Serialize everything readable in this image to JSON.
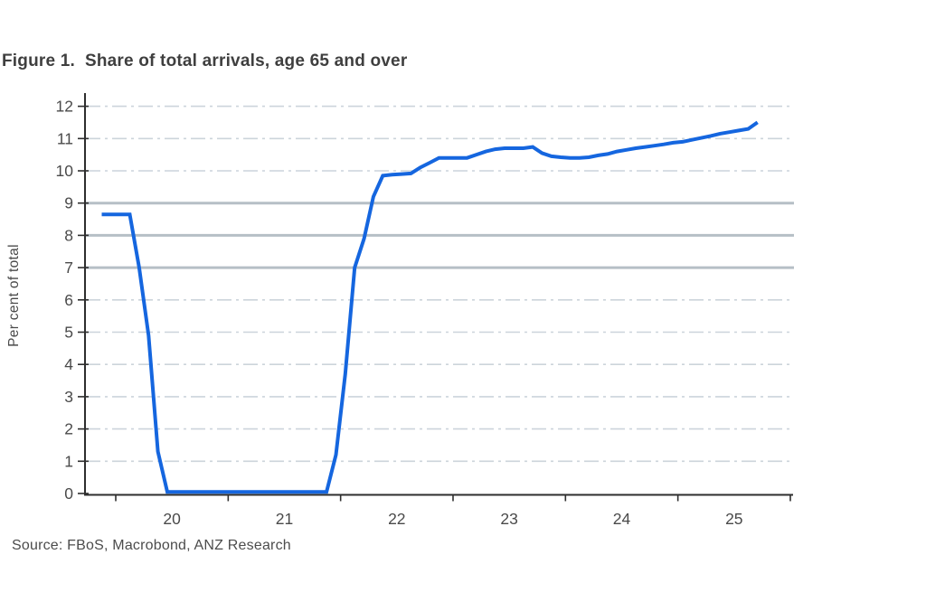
{
  "figure": {
    "title": "Figure 1.  Share of total arrivals, age 65 and over",
    "source": "Source: FBoS, Macrobond, ANZ Research"
  },
  "style": {
    "background": "#ffffff",
    "line_color": "#1566df",
    "grid_dashed_color": "#ccd4db",
    "grid_solid_color": "#b6bfc6",
    "axis_color": "#2e2e2e",
    "tick_label_color": "#4a4a4a",
    "title_color": "#3f3f3f",
    "source_color": "#4c4c4c"
  },
  "chart_data": {
    "type": "line",
    "title": "Figure 1. Share of total arrivals, age 65 and over",
    "xlabel": "",
    "ylabel": "Per cent of total",
    "ylim": [
      0,
      12
    ],
    "ytick_interval": 1,
    "ytick_labels": [
      "0",
      "1",
      "2",
      "3",
      "4",
      "5",
      "6",
      "7",
      "8",
      "9",
      "10",
      "11",
      "12"
    ],
    "xtick_labels": [
      "20",
      "21",
      "22",
      "23",
      "24",
      "25"
    ],
    "x_year_boundaries": [
      2020,
      2021,
      2022,
      2023,
      2024,
      2025,
      2026
    ],
    "grid": "horizontal dash-dot light gray; solid heavier gray at 7, 8 and 9",
    "legend_position": "none",
    "solid_grid_levels": [
      7,
      8,
      9
    ],
    "series": [
      {
        "name": "Share of total arrivals, age 65 and over",
        "color": "#1566df",
        "frequency": "monthly",
        "x": [
          "2019-11",
          "2019-12",
          "2020-01",
          "2020-02",
          "2020-03",
          "2020-04",
          "2020-05",
          "2020-06",
          "2020-07",
          "2020-08",
          "2020-09",
          "2020-10",
          "2020-11",
          "2020-12",
          "2021-01",
          "2021-02",
          "2021-03",
          "2021-04",
          "2021-05",
          "2021-06",
          "2021-07",
          "2021-08",
          "2021-09",
          "2021-10",
          "2021-11",
          "2021-12",
          "2022-01",
          "2022-02",
          "2022-03",
          "2022-04",
          "2022-05",
          "2022-06",
          "2022-07",
          "2022-08",
          "2022-09",
          "2022-10",
          "2022-11",
          "2022-12",
          "2023-01",
          "2023-02",
          "2023-03",
          "2023-04",
          "2023-05",
          "2023-06",
          "2023-07",
          "2023-08",
          "2023-09",
          "2023-10",
          "2023-11",
          "2023-12",
          "2024-01",
          "2024-02",
          "2024-03",
          "2024-04",
          "2024-05",
          "2024-06",
          "2024-07",
          "2024-08",
          "2024-09",
          "2024-10",
          "2024-11",
          "2024-12",
          "2025-01",
          "2025-02",
          "2025-03",
          "2025-04",
          "2025-05",
          "2025-06",
          "2025-07",
          "2025-08",
          "2025-09"
        ],
        "values": [
          8.65,
          8.65,
          8.65,
          8.65,
          7.0,
          4.9,
          1.3,
          0.05,
          0.05,
          0.05,
          0.05,
          0.05,
          0.05,
          0.05,
          0.05,
          0.05,
          0.05,
          0.05,
          0.05,
          0.05,
          0.05,
          0.05,
          0.05,
          0.05,
          0.05,
          1.2,
          3.7,
          7.0,
          7.9,
          9.2,
          9.85,
          9.88,
          9.9,
          9.92,
          10.1,
          10.25,
          10.4,
          10.4,
          10.4,
          10.4,
          10.5,
          10.6,
          10.67,
          10.7,
          10.7,
          10.7,
          10.74,
          10.55,
          10.45,
          10.42,
          10.4,
          10.4,
          10.42,
          10.48,
          10.52,
          10.6,
          10.65,
          10.7,
          10.74,
          10.78,
          10.82,
          10.87,
          10.9,
          10.96,
          11.02,
          11.08,
          11.15,
          11.2,
          11.25,
          11.3,
          11.5
        ]
      }
    ]
  }
}
